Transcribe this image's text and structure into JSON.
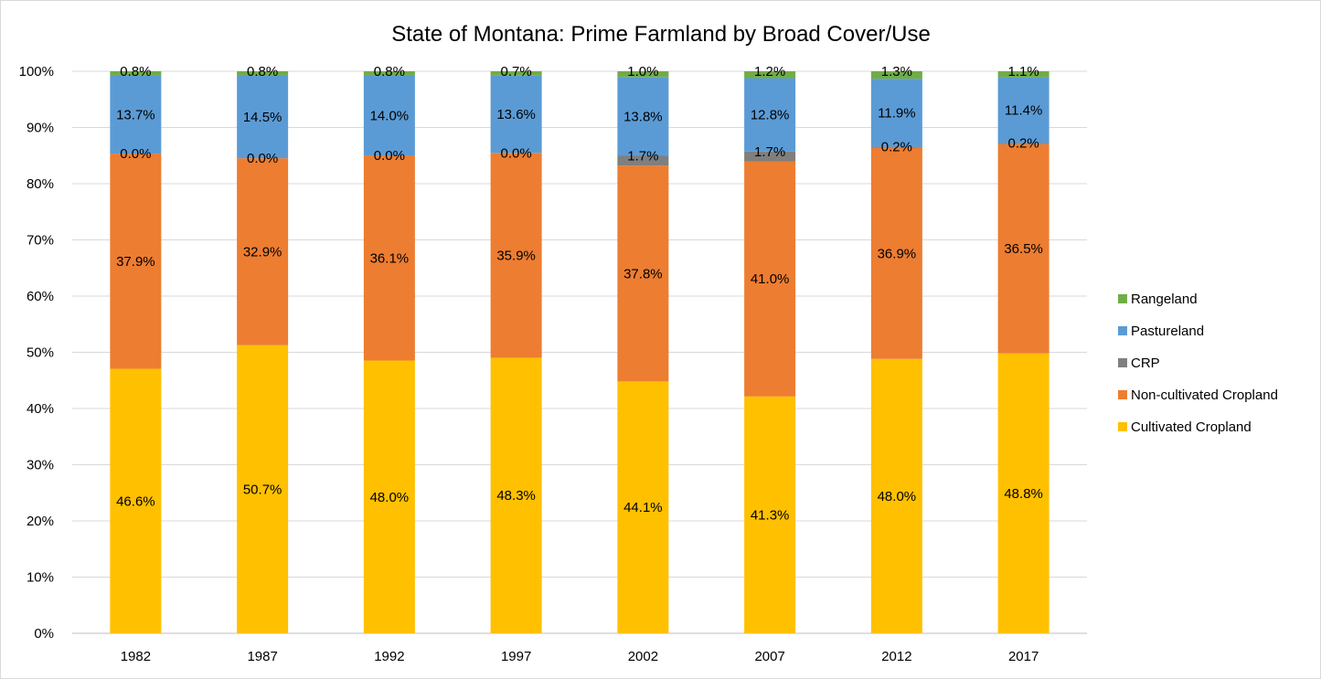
{
  "chart_data": {
    "type": "bar",
    "stacked": true,
    "percent_stacked": true,
    "title": "State of Montana:  Prime Farmland by Broad Cover/Use",
    "xlabel": "",
    "ylabel": "",
    "categories": [
      "1982",
      "1987",
      "1992",
      "1997",
      "2002",
      "2007",
      "2012",
      "2017"
    ],
    "ylim": [
      0,
      100
    ],
    "y_ticks": [
      "0%",
      "10%",
      "20%",
      "30%",
      "40%",
      "50%",
      "60%",
      "70%",
      "80%",
      "90%",
      "100%"
    ],
    "grid": true,
    "legend_position": "right",
    "series": [
      {
        "name": "Cultivated Cropland",
        "color": "#FFC000",
        "values": [
          46.6,
          50.7,
          48.0,
          48.3,
          44.1,
          41.3,
          48.0,
          48.8
        ],
        "labels": [
          "46.6%",
          "50.7%",
          "48.0%",
          "48.3%",
          "44.1%",
          "41.3%",
          "48.0%",
          "48.8%"
        ]
      },
      {
        "name": "Non-cultivated Cropland",
        "color": "#ED7D31",
        "values": [
          37.9,
          32.9,
          36.1,
          35.9,
          37.8,
          41.0,
          36.9,
          36.5
        ],
        "labels": [
          "37.9%",
          "32.9%",
          "36.1%",
          "35.9%",
          "37.8%",
          "41.0%",
          "36.9%",
          "36.5%"
        ]
      },
      {
        "name": "CRP",
        "color": "#7F7F7F",
        "values": [
          0.0,
          0.0,
          0.0,
          0.0,
          1.7,
          1.7,
          0.2,
          0.2
        ],
        "labels": [
          "0.0%",
          "0.0%",
          "0.0%",
          "0.0%",
          "1.7%",
          "1.7%",
          "0.2%",
          "0.2%"
        ]
      },
      {
        "name": "Pastureland",
        "color": "#5B9BD5",
        "values": [
          13.7,
          14.5,
          14.0,
          13.6,
          13.8,
          12.8,
          11.9,
          11.4
        ],
        "labels": [
          "13.7%",
          "14.5%",
          "14.0%",
          "13.6%",
          "13.8%",
          "12.8%",
          "11.9%",
          "11.4%"
        ]
      },
      {
        "name": "Rangeland",
        "color": "#70AD47",
        "values": [
          0.8,
          0.8,
          0.8,
          0.7,
          1.0,
          1.2,
          1.3,
          1.1
        ],
        "labels": [
          "0.8%",
          "0.8%",
          "0.8%",
          "0.7%",
          "1.0%",
          "1.2%",
          "1.3%",
          "1.1%"
        ]
      }
    ]
  }
}
